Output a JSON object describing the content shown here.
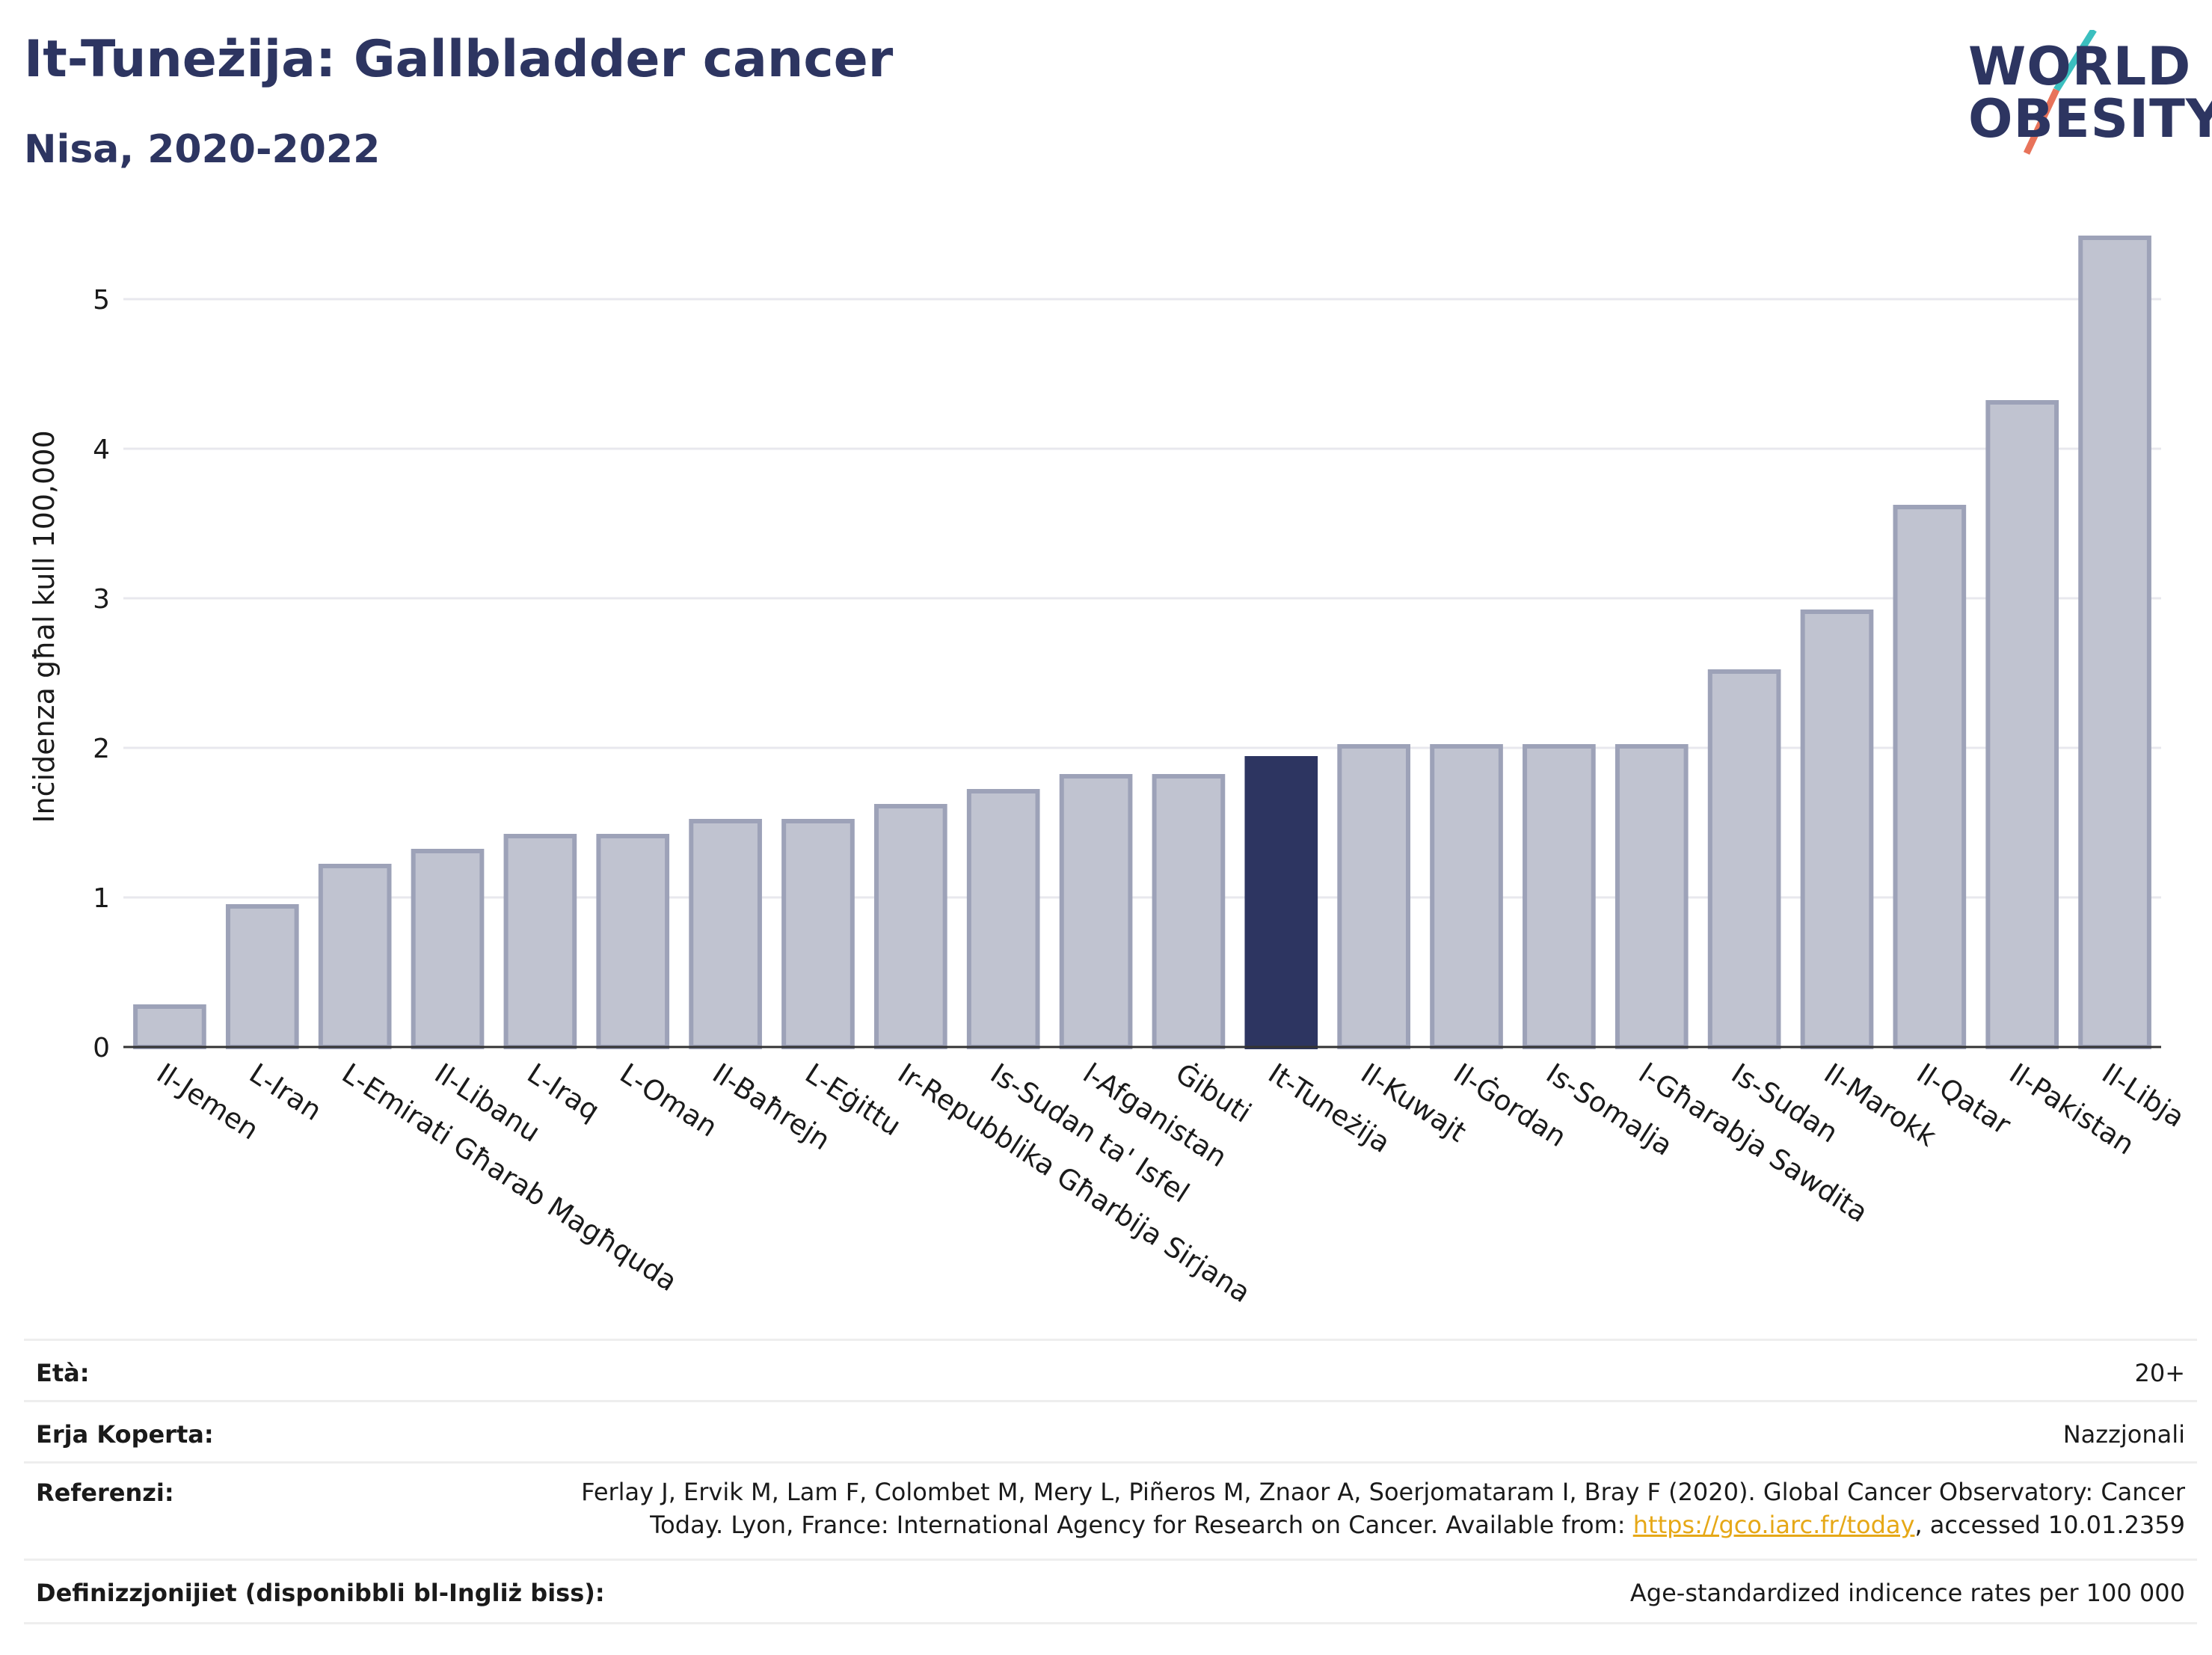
{
  "header": {
    "title": "It-Tuneżija: Gallbladder cancer",
    "subtitle": "Nisa, 2020-2022"
  },
  "logo": {
    "line1": "WORLD",
    "line2": "OBESITY"
  },
  "chart_data": {
    "type": "bar",
    "ylabel": "Inċidenza għal kull 100,000",
    "ylim": [
      0,
      5.5
    ],
    "yticks": [
      0,
      1,
      2,
      3,
      4,
      5
    ],
    "grid": true,
    "highlight": "It-Tuneżija",
    "bar_color": "#c0c3d0",
    "bar_border": "#9da2b8",
    "highlight_color": "#2d3561",
    "categories": [
      "Il-Jemen",
      "L-Iran",
      "L-Emirati Għarab Magħquda",
      "Il-Libanu",
      "L-Iraq",
      "L-Oman",
      "Il-Baħrejn",
      "L-Eġittu",
      "Ir-Repubblika Għarbija Sirjana",
      "Is-Sudan ta' Isfel",
      "l-Afganistan",
      "Ġibuti",
      "It-Tuneżija",
      "Il-Kuwajt",
      "Il-Ġordan",
      "Is-Somalja",
      "l-Għarabja Sawdita",
      "Is-Sudan",
      "Il-Marokk",
      "Il-Qatar",
      "Il-Pakistan",
      "Il-Libja"
    ],
    "values": [
      0.27,
      0.94,
      1.21,
      1.31,
      1.41,
      1.41,
      1.51,
      1.51,
      1.61,
      1.71,
      1.81,
      1.81,
      1.93,
      2.01,
      2.01,
      2.01,
      2.01,
      2.51,
      2.91,
      3.61,
      4.31,
      5.41
    ]
  },
  "footer": {
    "rows": [
      {
        "key": "Età:",
        "value": "20+"
      },
      {
        "key": "Erja Koperta:",
        "value": "Nazzjonali"
      },
      {
        "key": "Referenzi:",
        "value_line1": "Ferlay J, Ervik M, Lam F, Colombet M, Mery L, Piñeros M, Znaor A, Soerjomataram I, Bray F (2020). Global Cancer Observatory: Cancer",
        "value_line2_pre": "Today. Lyon, France: International Agency for Research on Cancer. Available from: ",
        "value_link": "https://gco.iarc.fr/today",
        "value_line2_post": ", accessed 10.01.2359"
      },
      {
        "key": "Definizzjonijiet (disponibbli bl-Ingliż biss):",
        "value": "Age-standardized indicence rates per 100 000"
      }
    ]
  }
}
